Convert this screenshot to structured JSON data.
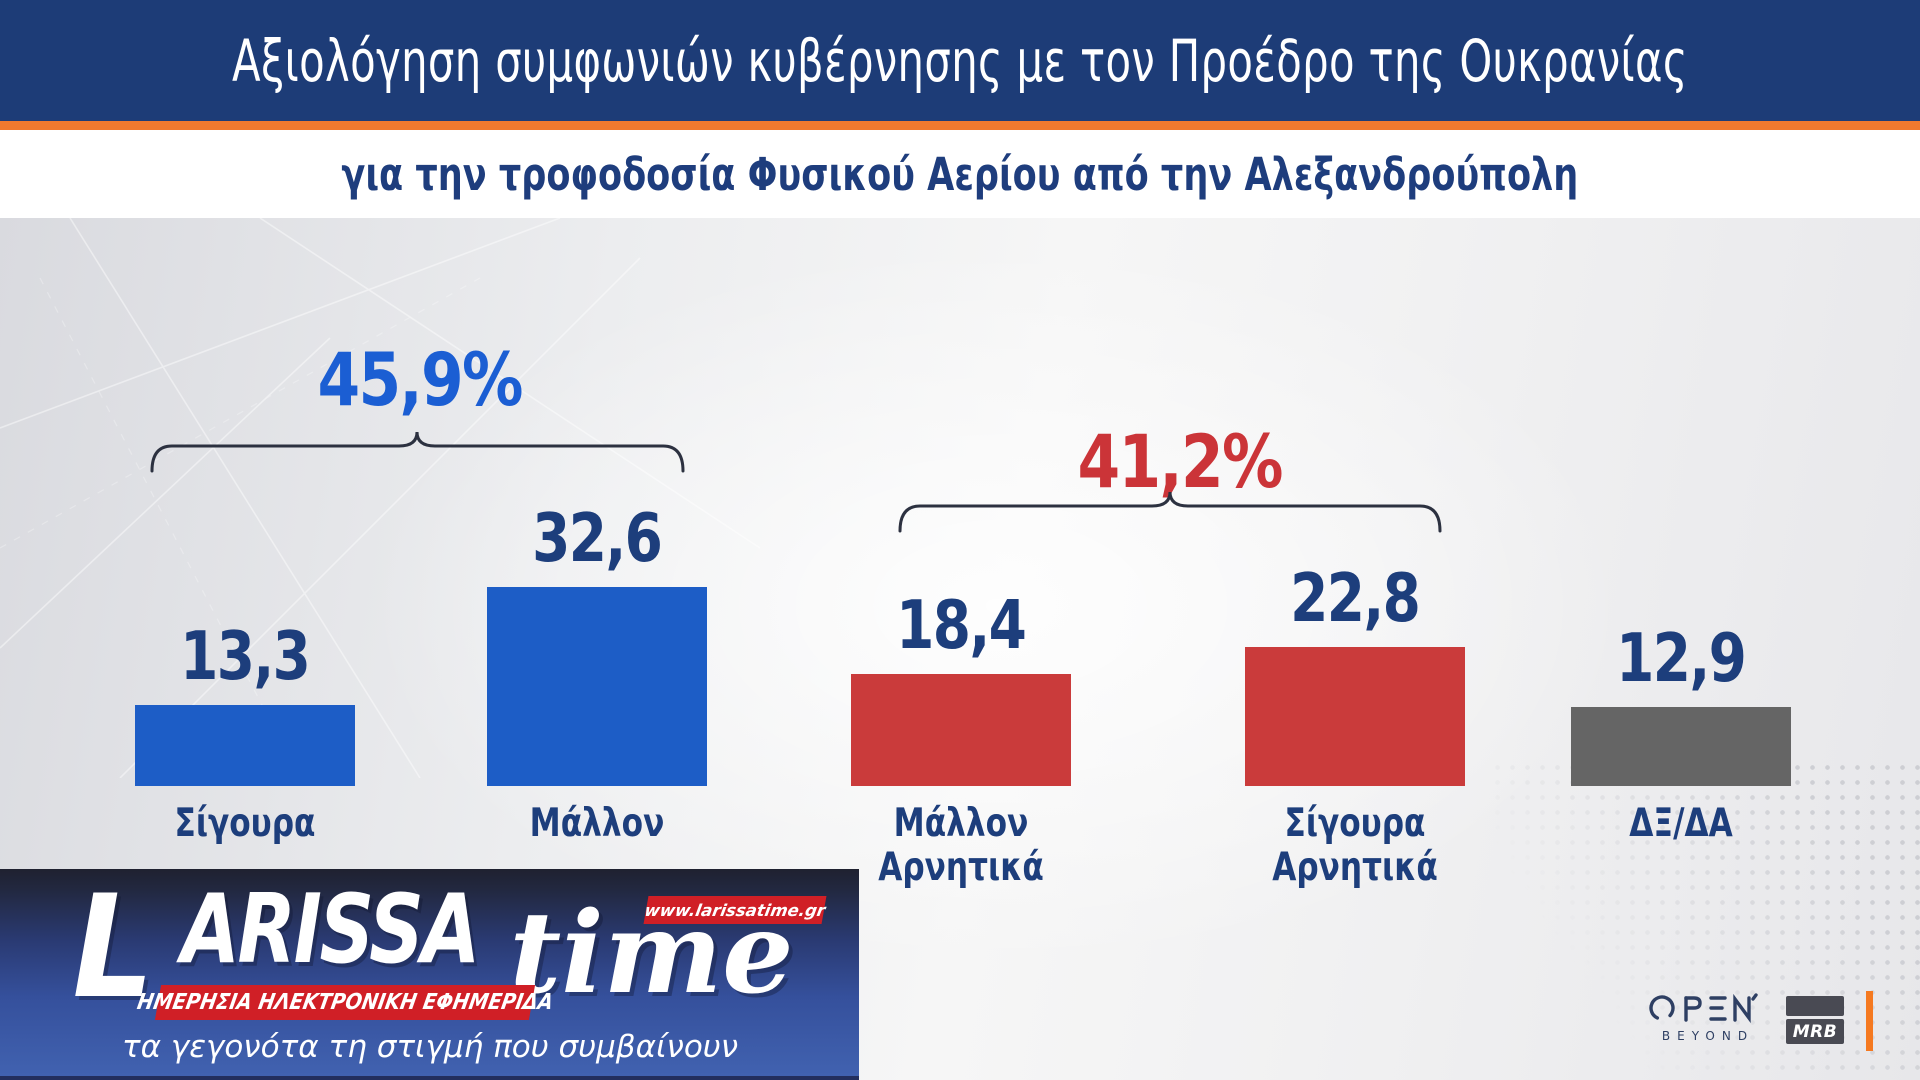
{
  "header": {
    "title": "Αξιολόγηση συμφωνιών κυβέρνησης με τον Προέδρο της Ουκρανίας",
    "subtitle": "για την τροφοδοσία Φυσικού Αερίου από την Αλεξανδρούπολη",
    "band_color": "#1d3c77",
    "accent_color": "#f0792f"
  },
  "chart_data": {
    "type": "bar",
    "title": "Αξιολόγηση συμφωνιών κυβέρνησης με τον Προέδρο της Ουκρανίας",
    "subtitle": "για την τροφοδοσία Φυσικού Αερίου από την Αλεξανδρούπολη",
    "categories": [
      "Σίγουρα",
      "Μάλλον",
      "Μάλλον Αρνητικά",
      "Σίγουρα Αρνητικά",
      "ΔΞ/ΔΑ"
    ],
    "category_lines": [
      [
        "Σίγουρα"
      ],
      [
        "Μάλλον"
      ],
      [
        "Μάλλον",
        "Αρνητικά"
      ],
      [
        "Σίγουρα",
        "Αρνητικά"
      ],
      [
        "ΔΞ/ΔΑ"
      ]
    ],
    "values": [
      13.3,
      32.6,
      18.4,
      22.8,
      12.9
    ],
    "value_labels": [
      "13,3",
      "32,6",
      "18,4",
      "22,8",
      "12,9"
    ],
    "bar_colors": [
      "#1d5dc6",
      "#1d5dc6",
      "#ca3b3b",
      "#ca3b3b",
      "#656565"
    ],
    "value_label_color": "#1d3e7c",
    "groups": [
      {
        "label": "45,9%",
        "covers": [
          "Σίγουρα",
          "Μάλλον"
        ],
        "color": "#1b5ed3"
      },
      {
        "label": "41,2%",
        "covers": [
          "Μάλλον Αρνητικά",
          "Σίγουρα Αρνητικά"
        ],
        "color": "#cb3438"
      }
    ],
    "ylim": [
      0,
      35
    ],
    "grid": false,
    "legend": false,
    "orientation": "vertical"
  },
  "watermark": {
    "brand_main": "LARISSA",
    "brand_suffix": "time",
    "url": "www.larissatime.gr",
    "ribbon": "ΗΜΕΡΗΣΙΑ ΗΛΕΚΤΡΟΝΙΚΗ ΕΦΗΜΕΡΙΔΑ",
    "tagline": "τα γεγονότα τη στιγμή που συμβαίνουν",
    "ribbon_color": "#d01f26"
  },
  "footer_logos": {
    "open": {
      "name": "OPEN",
      "tagline": "BEYOND"
    },
    "mrb": {
      "name": "MRB"
    }
  }
}
